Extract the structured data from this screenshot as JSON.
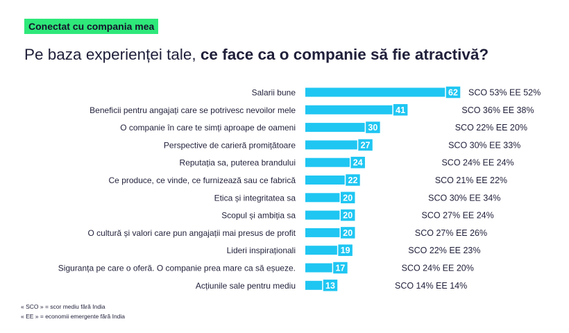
{
  "header": {
    "tag": "Conectat cu compania mea",
    "question_regular": "Pe baza experienței tale, ",
    "question_bold": "ce face ca o companie să fie atractivă?"
  },
  "chart_data": {
    "type": "bar",
    "orientation": "horizontal",
    "bar_color": "#1fc6f2",
    "xlim": [
      0,
      62
    ],
    "categories": [
      "Salarii bune",
      "Beneficii pentru angajați care se potrivesc nevoilor mele",
      "O companie în care te simți aproape de oameni",
      "Perspective de carieră promițătoare",
      "Reputația sa, puterea brandului",
      "Ce produce, ce vinde, ce furnizează sau ce fabrică",
      "Etica și integritatea sa",
      "Scopul și ambiția sa",
      "O cultură și valori care pun angajații mai presus de profit",
      "Lideri inspiraționali",
      "Siguranța pe care o oferă. O companie prea mare ca să eșueze.",
      "Acțiunile sale pentru mediu"
    ],
    "values": [
      62,
      41,
      30,
      27,
      24,
      22,
      20,
      20,
      20,
      19,
      17,
      13
    ],
    "annotations": [
      "SCO 53% EE 52%",
      "SCO 36% EE 38%",
      "SCO 22% EE 20%",
      "SCO 30% EE 33%",
      "SCO 24% EE 24%",
      "SCO 21% EE 22%",
      "SCO 30% EE 34%",
      "SCO 27% EE 24%",
      "SCO 27% EE 26%",
      "SCO 22% EE 23%",
      "SCO 24% EE 20%",
      "SCO 14% EE 14%"
    ]
  },
  "footnotes": [
    "« SCO » = scor mediu fără India",
    "« EE » = economii emergente fără India"
  ]
}
